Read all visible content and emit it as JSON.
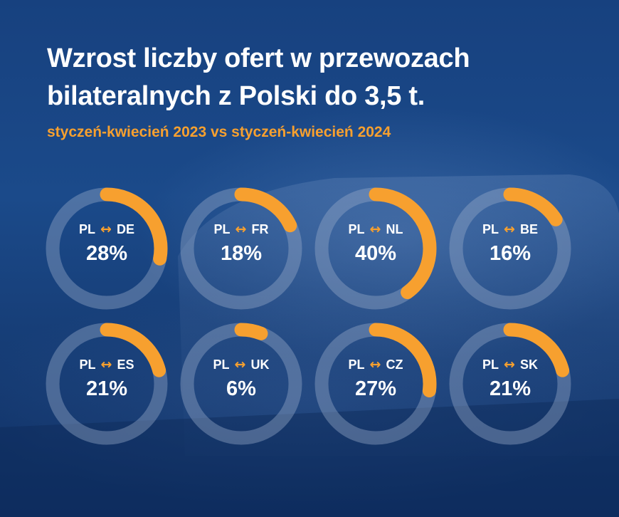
{
  "title": "Wzrost liczby ofert w przewozach bilateralnych z Polski do 3,5 t.",
  "subtitle": "styczeń-kwiecień 2023 vs styczeń-kwiecień 2024",
  "colors": {
    "accent": "#f7a02f",
    "background": "#17417f",
    "track": "#7a8fb2",
    "text": "#ffffff"
  },
  "chart_data": {
    "type": "donut",
    "origin_label": "PL",
    "arrow": "↔",
    "unit": "%",
    "categories": [
      "DE",
      "FR",
      "NL",
      "BE",
      "ES",
      "UK",
      "CZ",
      "SK"
    ],
    "values": [
      28,
      18,
      40,
      16,
      21,
      6,
      27,
      21
    ],
    "labels": [
      "28%",
      "18%",
      "40%",
      "16%",
      "21%",
      "6%",
      "27%",
      "21%"
    ],
    "legend": "none"
  }
}
